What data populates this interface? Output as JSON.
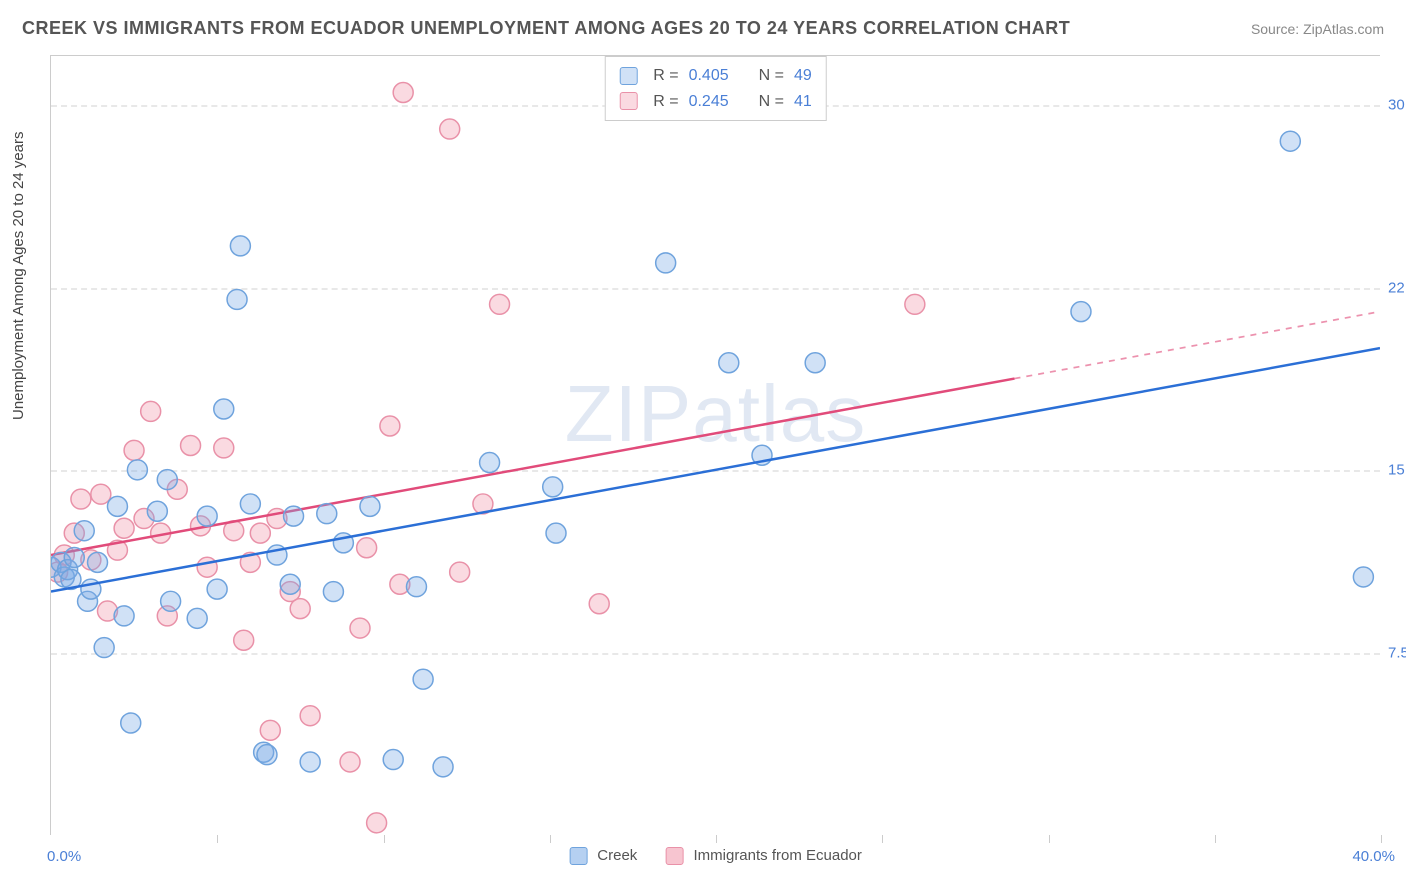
{
  "title": "CREEK VS IMMIGRANTS FROM ECUADOR UNEMPLOYMENT AMONG AGES 20 TO 24 YEARS CORRELATION CHART",
  "source": "Source: ZipAtlas.com",
  "ylabel": "Unemployment Among Ages 20 to 24 years",
  "watermark": "ZIPatlas",
  "chart": {
    "type": "scatter",
    "xlim": [
      0,
      40
    ],
    "ylim": [
      0,
      32
    ],
    "xticks": [
      0,
      5,
      10,
      15,
      20,
      25,
      30,
      35,
      40
    ],
    "yticks": [
      7.5,
      15.0,
      22.5,
      30.0
    ],
    "ytick_labels": [
      "7.5%",
      "15.0%",
      "22.5%",
      "30.0%"
    ],
    "xlabel_min": "0.0%",
    "xlabel_max": "40.0%",
    "grid_color": "#e8e8e8",
    "axis_color": "#cccccc",
    "background_color": "#ffffff",
    "tick_label_color": "#4a7fd6",
    "marker_radius": 10,
    "marker_stroke_width": 1.5,
    "line_width": 2.5
  },
  "series": {
    "creek": {
      "label": "Creek",
      "fill": "rgba(120,170,230,0.35)",
      "stroke": "#6fa3dd",
      "R": "0.405",
      "N": "49",
      "points": [
        [
          0.0,
          11.0
        ],
        [
          0.3,
          11.2
        ],
        [
          0.4,
          10.6
        ],
        [
          0.5,
          10.9
        ],
        [
          0.6,
          10.5
        ],
        [
          0.7,
          11.4
        ],
        [
          1.0,
          12.5
        ],
        [
          1.1,
          9.6
        ],
        [
          1.2,
          10.1
        ],
        [
          1.4,
          11.2
        ],
        [
          1.6,
          7.7
        ],
        [
          2.0,
          13.5
        ],
        [
          2.2,
          9.0
        ],
        [
          2.4,
          4.6
        ],
        [
          2.6,
          15.0
        ],
        [
          3.2,
          13.3
        ],
        [
          3.5,
          14.6
        ],
        [
          3.6,
          9.6
        ],
        [
          4.4,
          8.9
        ],
        [
          4.7,
          13.1
        ],
        [
          5.0,
          10.1
        ],
        [
          5.2,
          17.5
        ],
        [
          5.6,
          22.0
        ],
        [
          5.7,
          24.2
        ],
        [
          6.0,
          13.6
        ],
        [
          6.4,
          3.4
        ],
        [
          6.5,
          3.3
        ],
        [
          6.8,
          11.5
        ],
        [
          7.2,
          10.3
        ],
        [
          7.3,
          13.1
        ],
        [
          7.8,
          3.0
        ],
        [
          8.3,
          13.2
        ],
        [
          8.5,
          10.0
        ],
        [
          8.8,
          12.0
        ],
        [
          9.6,
          13.5
        ],
        [
          10.3,
          3.1
        ],
        [
          11.0,
          10.2
        ],
        [
          11.2,
          6.4
        ],
        [
          11.8,
          2.8
        ],
        [
          13.2,
          15.3
        ],
        [
          15.1,
          14.3
        ],
        [
          15.2,
          12.4
        ],
        [
          18.5,
          23.5
        ],
        [
          20.4,
          19.4
        ],
        [
          21.4,
          15.6
        ],
        [
          23.0,
          19.4
        ],
        [
          31.0,
          21.5
        ],
        [
          37.3,
          28.5
        ],
        [
          39.5,
          10.6
        ]
      ],
      "trend": {
        "x1": 0,
        "y1": 10.0,
        "x2": 40,
        "y2": 20.0,
        "solid_until_x": 40
      }
    },
    "ecuador": {
      "label": "Immigrants from Ecuador",
      "fill": "rgba(240,150,170,0.35)",
      "stroke": "#e991a8",
      "R": "0.245",
      "N": "41",
      "points": [
        [
          0.2,
          10.8
        ],
        [
          0.4,
          11.5
        ],
        [
          0.7,
          12.4
        ],
        [
          0.9,
          13.8
        ],
        [
          1.2,
          11.3
        ],
        [
          1.5,
          14.0
        ],
        [
          1.7,
          9.2
        ],
        [
          2.0,
          11.7
        ],
        [
          2.2,
          12.6
        ],
        [
          2.5,
          15.8
        ],
        [
          2.8,
          13.0
        ],
        [
          3.0,
          17.4
        ],
        [
          3.3,
          12.4
        ],
        [
          3.5,
          9.0
        ],
        [
          3.8,
          14.2
        ],
        [
          4.2,
          16.0
        ],
        [
          4.5,
          12.7
        ],
        [
          4.7,
          11.0
        ],
        [
          5.2,
          15.9
        ],
        [
          5.5,
          12.5
        ],
        [
          5.8,
          8.0
        ],
        [
          6.0,
          11.2
        ],
        [
          6.3,
          12.4
        ],
        [
          6.6,
          4.3
        ],
        [
          6.8,
          13.0
        ],
        [
          7.2,
          10.0
        ],
        [
          7.5,
          9.3
        ],
        [
          7.8,
          4.9
        ],
        [
          9.0,
          3.0
        ],
        [
          9.3,
          8.5
        ],
        [
          9.5,
          11.8
        ],
        [
          9.8,
          0.5
        ],
        [
          10.2,
          16.8
        ],
        [
          10.5,
          10.3
        ],
        [
          10.6,
          30.5
        ],
        [
          12.0,
          29.0
        ],
        [
          12.3,
          10.8
        ],
        [
          13.0,
          13.6
        ],
        [
          13.5,
          21.8
        ],
        [
          16.5,
          9.5
        ],
        [
          26.0,
          21.8
        ]
      ],
      "trend": {
        "x1": 0,
        "y1": 11.5,
        "x2": 40,
        "y2": 21.5,
        "solid_until_x": 29
      }
    }
  },
  "legend_top": [
    {
      "swatch_fill": "rgba(120,170,230,0.35)",
      "swatch_stroke": "#6fa3dd",
      "R": "0.405",
      "N": "49"
    },
    {
      "swatch_fill": "rgba(240,150,170,0.35)",
      "swatch_stroke": "#e991a8",
      "R": "0.245",
      "N": "41"
    }
  ],
  "legend_bottom": [
    {
      "swatch_fill": "rgba(120,170,230,0.55)",
      "swatch_stroke": "#6fa3dd",
      "label": "Creek"
    },
    {
      "swatch_fill": "rgba(240,150,170,0.55)",
      "swatch_stroke": "#e991a8",
      "label": "Immigrants from Ecuador"
    }
  ]
}
